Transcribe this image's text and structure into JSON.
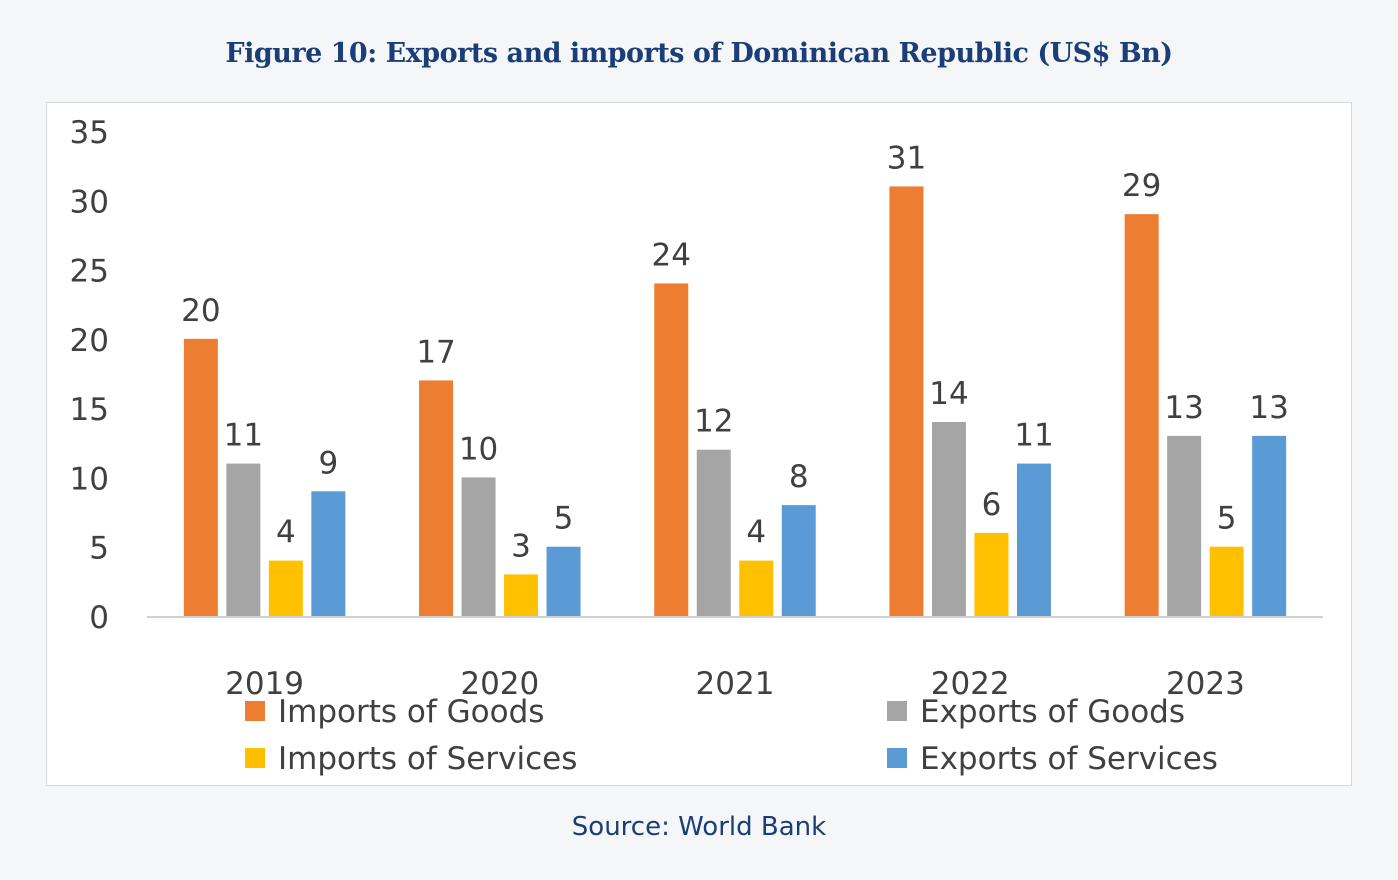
{
  "title": "Figure 10: Exports and imports of Dominican Republic (US$ Bn)",
  "source": "Source: World Bank",
  "chart_data": {
    "type": "bar",
    "title": "Figure 10: Exports and imports of Dominican Republic (US$ Bn)",
    "xlabel": "",
    "ylabel": "",
    "ylim": [
      0,
      35
    ],
    "yticks": [
      0,
      5,
      10,
      15,
      20,
      25,
      30,
      35
    ],
    "grid": false,
    "legend_position": "bottom",
    "categories": [
      "2019",
      "2020",
      "2021",
      "2022",
      "2023"
    ],
    "series": [
      {
        "name": "Imports of Goods",
        "color": "#ed7d31",
        "values": [
          20,
          17,
          24,
          31,
          29
        ],
        "labels": [
          "20",
          "17",
          "24",
          "31",
          "29"
        ]
      },
      {
        "name": "Exports of Goods",
        "color": "#a5a5a5",
        "values": [
          11,
          10,
          12,
          14,
          13
        ],
        "labels": [
          "11",
          "10",
          "12",
          "14",
          "13"
        ]
      },
      {
        "name": "Imports of Services",
        "color": "#ffc000",
        "values": [
          4,
          3,
          4,
          6,
          5
        ],
        "labels": [
          "4",
          "3",
          "4",
          "6",
          "5"
        ]
      },
      {
        "name": "Exports of Services",
        "color": "#5b9bd5",
        "values": [
          9,
          5,
          8,
          11,
          13
        ],
        "labels": [
          "9",
          "5",
          "8",
          "11",
          "13"
        ]
      }
    ],
    "legend": [
      {
        "name": "Imports of Goods",
        "color": "#ed7d31"
      },
      {
        "name": "Exports of Goods",
        "color": "#a5a5a5"
      },
      {
        "name": "Imports of Services",
        "color": "#ffc000"
      },
      {
        "name": "Exports of Services",
        "color": "#5b9bd5"
      }
    ]
  }
}
